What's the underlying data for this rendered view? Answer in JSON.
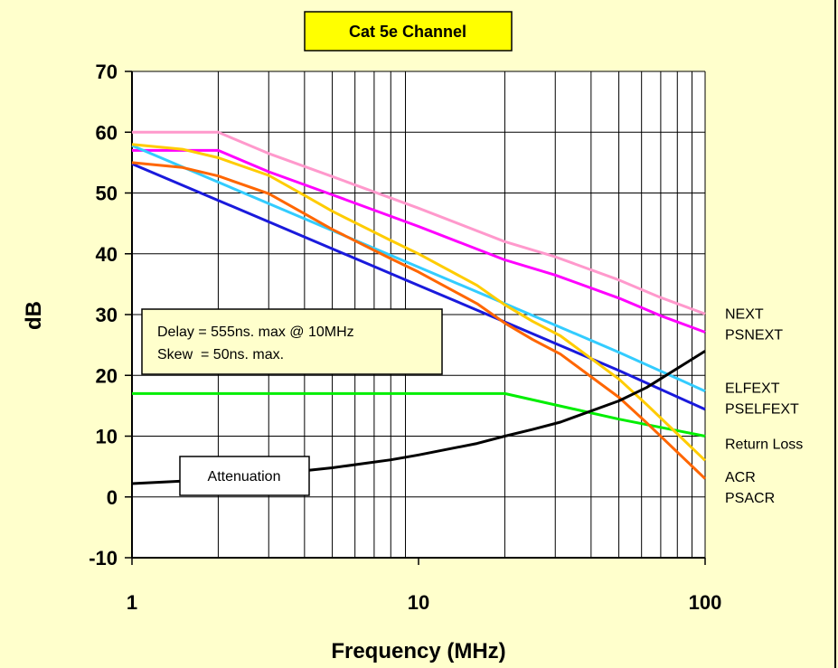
{
  "chart_data": {
    "type": "line",
    "title": "Cat 5e Channel",
    "xlabel": "Frequency (MHz)",
    "ylabel": "dB",
    "x_scale": "log",
    "xlim": [
      1,
      100
    ],
    "ylim": [
      -10,
      70
    ],
    "x_ticks": [
      {
        "value": 1,
        "label": "1"
      },
      {
        "value": 10,
        "label": "10"
      },
      {
        "value": 100,
        "label": "100"
      }
    ],
    "y_ticks": [
      {
        "value": 70,
        "label": "70"
      },
      {
        "value": 60,
        "label": "60"
      },
      {
        "value": 50,
        "label": "50"
      },
      {
        "value": 40,
        "label": "40"
      },
      {
        "value": 30,
        "label": "30"
      },
      {
        "value": 20,
        "label": "20"
      },
      {
        "value": 10,
        "label": "10"
      },
      {
        "value": 0,
        "label": "0"
      },
      {
        "value": -10,
        "label": "-10"
      }
    ],
    "grid": true,
    "series": [
      {
        "name": "NEXT",
        "color": "#ff99cc",
        "x": [
          1,
          2,
          3,
          5,
          10,
          20,
          30,
          50,
          70,
          100
        ],
        "y": [
          60,
          60,
          56.5,
          52.7,
          47.5,
          42.0,
          39.5,
          35.7,
          32.8,
          30.1
        ]
      },
      {
        "name": "PSNEXT",
        "color": "#ff00ff",
        "x": [
          1,
          2,
          3,
          5,
          10,
          20,
          30,
          50,
          70,
          100
        ],
        "y": [
          57,
          57,
          53.5,
          49.7,
          44.5,
          39.0,
          36.5,
          32.7,
          29.8,
          27.1
        ]
      },
      {
        "name": "ELFEXT",
        "color": "#33ccff",
        "x": [
          1,
          10,
          20,
          50,
          100
        ],
        "y": [
          57.8,
          37.8,
          31.8,
          23.8,
          17.4
        ]
      },
      {
        "name": "PSELFEXT",
        "color": "#1a1adc",
        "x": [
          1,
          10,
          20,
          50,
          100
        ],
        "y": [
          54.8,
          34.8,
          28.8,
          20.8,
          14.4
        ]
      },
      {
        "name": "Return Loss",
        "color": "#00ee00",
        "x": [
          1,
          20,
          50,
          100
        ],
        "y": [
          17,
          17,
          12.8,
          10
        ]
      },
      {
        "name": "ACR",
        "color": "#ffcc00",
        "x": [
          1,
          1.5,
          2,
          3,
          4,
          5,
          8,
          10,
          16,
          20,
          25,
          31.25,
          50,
          62.5,
          100
        ],
        "y": [
          58.0,
          57.2,
          55.8,
          52.9,
          49.6,
          47.0,
          42.2,
          40.0,
          34.8,
          31.6,
          28.9,
          26.5,
          19.4,
          15.2,
          6.0
        ]
      },
      {
        "name": "PSACR",
        "color": "#ff6600",
        "x": [
          1,
          1.5,
          2,
          3,
          4,
          5,
          8,
          10,
          16,
          20,
          25,
          31.25,
          50,
          62.5,
          100
        ],
        "y": [
          55.0,
          54.2,
          52.8,
          49.9,
          46.6,
          44.0,
          39.2,
          37.0,
          31.8,
          28.6,
          25.9,
          23.5,
          16.4,
          12.2,
          3.0
        ]
      },
      {
        "name": "Attenuation",
        "color": "#000000",
        "x": [
          1,
          2,
          3,
          4,
          5,
          8,
          10,
          16,
          20,
          25,
          31.25,
          50,
          62.5,
          100
        ],
        "y": [
          2.2,
          2.9,
          3.7,
          4.3,
          4.8,
          6.1,
          6.9,
          8.8,
          10.0,
          11.1,
          12.3,
          15.8,
          18.0,
          24.0
        ]
      }
    ],
    "series_labels": [
      {
        "text": "NEXT",
        "y": 30.2
      },
      {
        "text": "PSNEXT",
        "y": 26.8
      },
      {
        "text": "ELFEXT",
        "y": 18.0
      },
      {
        "text": "PSELFEXT",
        "y": 14.6
      },
      {
        "text": "Return Loss",
        "y": 8.8
      },
      {
        "text": "ACR",
        "y": 3.4
      },
      {
        "text": "PSACR",
        "y": 0.0
      }
    ],
    "annotations": {
      "note_lines": [
        "Delay = 555ns. max @ 10MHz",
        "Skew  = 50ns. max."
      ],
      "attenuation_box": "Attenuation"
    }
  },
  "colors": {
    "background": "#ffffcc",
    "plot_area": "#ffffff",
    "title_box": "#ffff00",
    "note_box": "#ffffcc",
    "grid": "#000000"
  }
}
